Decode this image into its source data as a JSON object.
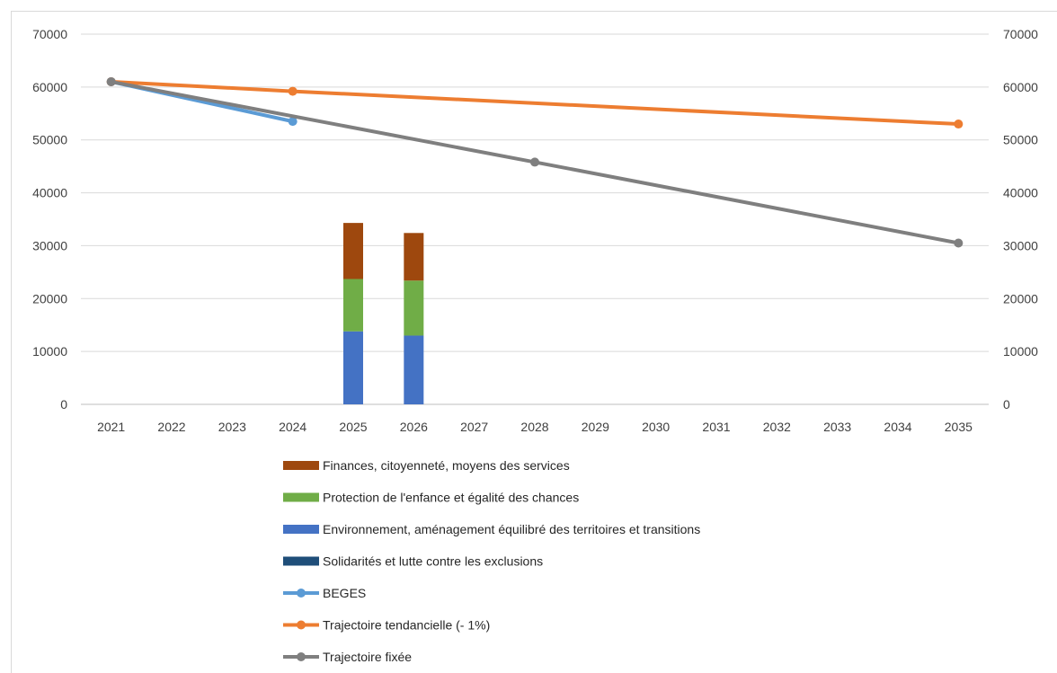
{
  "chart_data": {
    "type": "bar+line",
    "categories": [
      "2021",
      "2022",
      "2023",
      "2024",
      "2025",
      "2026",
      "2027",
      "2028",
      "2029",
      "2030",
      "2031",
      "2032",
      "2033",
      "2034",
      "2035"
    ],
    "y_ticks_left": [
      "70000",
      "60000",
      "50000",
      "40000",
      "30000",
      "20000",
      "10000",
      "0"
    ],
    "y_ticks_right": [
      "70000",
      "60000",
      "50000",
      "40000",
      "30000",
      "20000",
      "10000",
      "0"
    ],
    "ylim": [
      0,
      70000
    ],
    "grid": true,
    "legend_position": "bottom",
    "bar_series": [
      {
        "name": "Solidarités et lutte contre les exclusions",
        "color": "#1f4e79",
        "values": {
          "2025": 0,
          "2026": 0
        }
      },
      {
        "name": "Environnement, aménagement équilibré des territoires et transitions",
        "color": "#4472c4",
        "values": {
          "2025": 13800,
          "2026": 13000
        }
      },
      {
        "name": "Protection de l'enfance et égalité des chances",
        "color": "#70ad47",
        "values": {
          "2025": 9900,
          "2026": 10400
        }
      },
      {
        "name": "Finances, citoyenneté, moyens des services",
        "color": "#9e480e",
        "values": {
          "2025": 10600,
          "2026": 9000
        }
      }
    ],
    "line_series": [
      {
        "name": "BEGES",
        "color": "#5b9bd5",
        "points": [
          [
            "2021",
            61000
          ],
          [
            "2024",
            53500
          ]
        ]
      },
      {
        "name": "Trajectoire tendancielle (- 1%)",
        "color": "#ed7d31",
        "points": [
          [
            "2021",
            61000
          ],
          [
            "2024",
            59200
          ],
          [
            "2035",
            53000
          ]
        ]
      },
      {
        "name": "Trajectoire fixée",
        "color": "#7f7f7f",
        "points": [
          [
            "2021",
            61000
          ],
          [
            "2028",
            45800
          ],
          [
            "2035",
            30500
          ]
        ]
      }
    ],
    "legend_entries": [
      {
        "label": "Finances, citoyenneté, moyens des services",
        "kind": "bar",
        "color": "#9e480e"
      },
      {
        "label": "Protection de l'enfance et égalité des chances",
        "kind": "bar",
        "color": "#70ad47"
      },
      {
        "label": "Environnement, aménagement équilibré des territoires et transitions",
        "kind": "bar",
        "color": "#4472c4"
      },
      {
        "label": "Solidarités et lutte contre les exclusions",
        "kind": "bar",
        "color": "#1f4e79"
      },
      {
        "label": "BEGES",
        "kind": "line",
        "color": "#5b9bd5"
      },
      {
        "label": "Trajectoire tendancielle (- 1%)",
        "kind": "line",
        "color": "#ed7d31"
      },
      {
        "label": "Trajectoire fixée",
        "kind": "line",
        "color": "#7f7f7f"
      }
    ]
  }
}
